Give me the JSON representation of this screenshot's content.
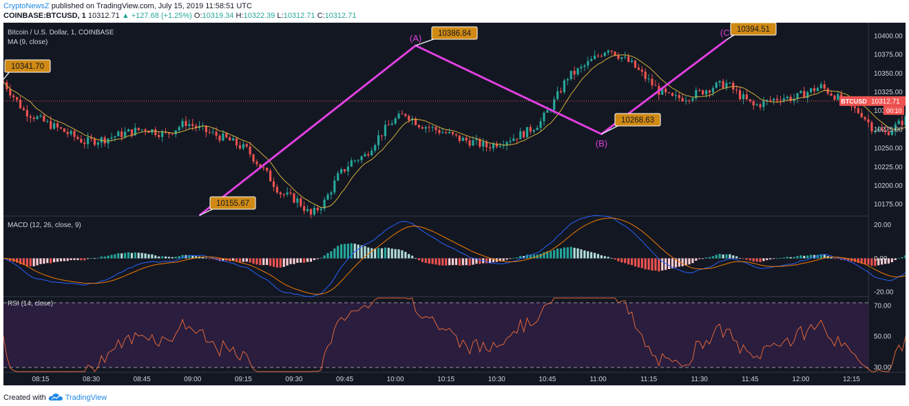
{
  "header": {
    "author": "CryptoNewsZ",
    "published": "published on TradingView.com, July 15, 2019 11:58:51 UTC",
    "symbol": "COINBASE:BTCUSD, 1",
    "last": "10312.71",
    "change": "▲ +127.68 (+1.25%)",
    "o_label": "O:",
    "o": "10319.34",
    "h_label": "H:",
    "h": "10322.39",
    "l_label": "L:",
    "l": "10312.71",
    "c_label": "C:",
    "c": "10312.71"
  },
  "footer": {
    "created_with": "Created with",
    "brand": "TradingView",
    "logo_icon": "tradingview-cloud-icon"
  },
  "colors": {
    "bg": "#131722",
    "up": "#26a69a",
    "down": "#ef5350",
    "ma": "#d4b03a",
    "pattern": "#e040e0",
    "callout": "#d08a14",
    "macd": "#2962ff",
    "signal": "#f57c00",
    "rsi": "#e2673a",
    "rsi_band": "#2a1d3d"
  },
  "chart_data": [
    {
      "type": "candlestick",
      "title": "Bitcoin / U.S. Dollar, 1, COINBASE",
      "indicator": "MA (9, close)",
      "symbol_tag": "BTCUSD",
      "last_price": "10312.71",
      "countdown": "00:10",
      "ylim": [
        10160,
        10410
      ],
      "yticks": [
        "10400.00",
        "10375.00",
        "10350.00",
        "10325.00",
        "10300.00",
        "10275.00",
        "10250.00",
        "10225.00",
        "10200.00",
        "10175.00"
      ],
      "xticks": [
        "08:15",
        "08:30",
        "08:45",
        "09:00",
        "09:15",
        "09:30",
        "09:45",
        "10:00",
        "10:15",
        "10:30",
        "10:45",
        "11:00",
        "11:15",
        "11:30",
        "11:45",
        "12:00",
        "12:15"
      ],
      "xrange_minutes": [
        484,
        740
      ],
      "close_path": [
        [
          484,
          10338
        ],
        [
          490,
          10300
        ],
        [
          496,
          10285
        ],
        [
          502,
          10272
        ],
        [
          508,
          10258
        ],
        [
          514,
          10262
        ],
        [
          520,
          10270
        ],
        [
          526,
          10276
        ],
        [
          532,
          10268
        ],
        [
          538,
          10284
        ],
        [
          544,
          10272
        ],
        [
          550,
          10262
        ],
        [
          556,
          10248
        ],
        [
          562,
          10215
        ],
        [
          566,
          10190
        ],
        [
          571,
          10180
        ],
        [
          575,
          10160
        ],
        [
          579,
          10178
        ],
        [
          583,
          10212
        ],
        [
          587,
          10232
        ],
        [
          591,
          10240
        ],
        [
          595,
          10265
        ],
        [
          599,
          10285
        ],
        [
          603,
          10296
        ],
        [
          607,
          10282
        ],
        [
          611,
          10276
        ],
        [
          615,
          10270
        ],
        [
          619,
          10262
        ],
        [
          623,
          10258
        ],
        [
          627,
          10252
        ],
        [
          631,
          10258
        ],
        [
          635,
          10264
        ],
        [
          639,
          10272
        ],
        [
          643,
          10285
        ],
        [
          647,
          10312
        ],
        [
          651,
          10345
        ],
        [
          655,
          10356
        ],
        [
          659,
          10370
        ],
        [
          663,
          10384
        ],
        [
          666,
          10374
        ],
        [
          670,
          10362
        ],
        [
          674,
          10344
        ],
        [
          678,
          10326
        ],
        [
          682,
          10316
        ],
        [
          686,
          10318
        ],
        [
          690,
          10324
        ],
        [
          694,
          10332
        ],
        [
          698,
          10336
        ],
        [
          702,
          10320
        ],
        [
          706,
          10306
        ],
        [
          710,
          10312
        ],
        [
          714,
          10318
        ],
        [
          718,
          10316
        ],
        [
          722,
          10325
        ],
        [
          726,
          10332
        ],
        [
          730,
          10320
        ],
        [
          734,
          10306
        ],
        [
          738,
          10296
        ],
        [
          741,
          10278
        ],
        [
          745,
          10270
        ],
        [
          749,
          10282
        ],
        [
          753,
          10295
        ],
        [
          757,
          10302
        ],
        [
          761,
          10306
        ],
        [
          765,
          10312
        ],
        [
          769,
          10320
        ],
        [
          773,
          10326
        ],
        [
          777,
          10319
        ],
        [
          781,
          10314
        ],
        [
          785,
          10330
        ],
        [
          789,
          10350
        ],
        [
          793,
          10372
        ],
        [
          797,
          10392
        ],
        [
          800,
          10384
        ],
        [
          804,
          10370
        ],
        [
          808,
          10358
        ],
        [
          812,
          10344
        ],
        [
          816,
          10334
        ],
        [
          820,
          10338
        ],
        [
          824,
          10336
        ],
        [
          828,
          10330
        ],
        [
          832,
          10318
        ],
        [
          836,
          10315
        ],
        [
          840,
          10313
        ]
      ],
      "pattern_points": [
        {
          "label": "",
          "time": "09:02",
          "price": 10155.67
        },
        {
          "label": "(A)",
          "time": "10:06",
          "price": 10386.84
        },
        {
          "label": "(B)",
          "time": "11:01",
          "price": 10268.63
        },
        {
          "label": "(C)",
          "time": "11:38",
          "price": 10394.51
        }
      ],
      "callouts": [
        "10341.70",
        "10155.67",
        "10386.84",
        "10268.63",
        "10394.51"
      ]
    },
    {
      "type": "histogram+line",
      "title": "MACD (12, 26, close, 9)",
      "ylim": [
        -22,
        24
      ],
      "yticks": [
        "20.00",
        "0.00",
        "-20.00"
      ]
    },
    {
      "type": "line",
      "title": "RSI (14, close)",
      "ylim": [
        27,
        75
      ],
      "yticks": [
        "70.00",
        "50.00",
        "30.00"
      ],
      "bands": [
        70,
        30
      ]
    }
  ]
}
